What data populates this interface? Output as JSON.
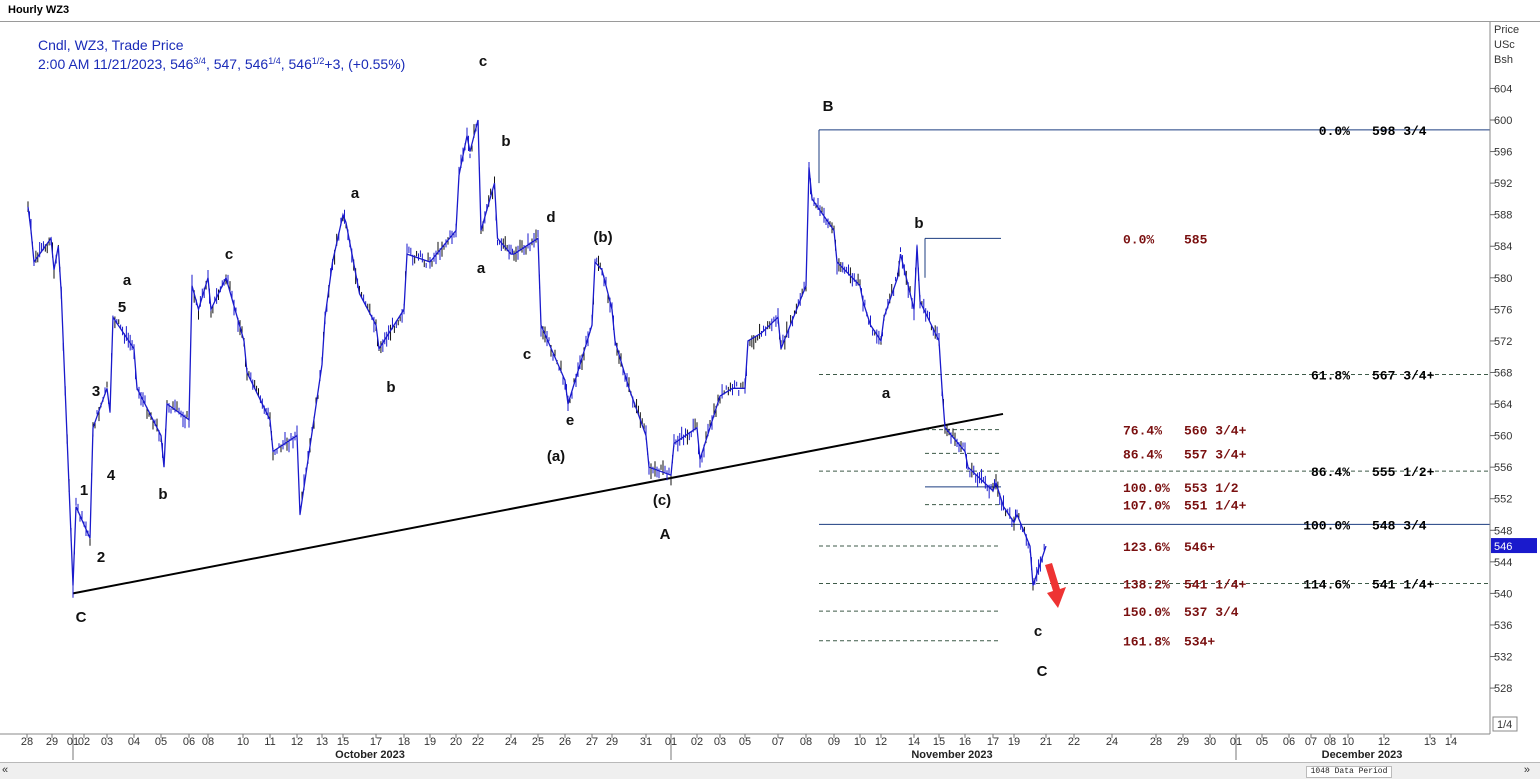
{
  "window": {
    "title": "Hourly WZ3"
  },
  "header": {
    "line1": "Cndl, WZ3, Trade Price",
    "line2_prefix": "2:00 AM 11/21/2023, 546",
    "open_frac": "3/4",
    "high": ", 547, 546",
    "low_frac": "1/4",
    "close": ", 546",
    "close_frac": "1/2",
    "change": "+3, (+0.55%)"
  },
  "colors": {
    "price_series": "#1a1acc",
    "fib_left": "#7a1010",
    "fib_right": "#000000",
    "header_text": "#1a2bb8",
    "current_price_box": "#1a1acc",
    "arrow": "#ee3333"
  },
  "chart_data": {
    "type": "line",
    "chart_style": "hourly candlestick (OHLC)",
    "instrument": "WZ3",
    "ylabel_lines": [
      "Price",
      "USc",
      "Bsh"
    ],
    "ylim": [
      524,
      608
    ],
    "yticks": [
      528,
      532,
      536,
      540,
      544,
      548,
      552,
      556,
      560,
      564,
      568,
      572,
      576,
      580,
      584,
      588,
      592,
      596,
      600,
      604
    ],
    "current_price_tag": "546",
    "scale_box": "1/4",
    "x_dates": [
      "28",
      "29",
      "01",
      "02",
      "03",
      "04",
      "05",
      "06",
      "08",
      "10",
      "11",
      "12",
      "13",
      "15",
      "17",
      "18",
      "19",
      "20",
      "22",
      "24",
      "25",
      "26",
      "27",
      "29",
      "31",
      "01",
      "02",
      "03",
      "05",
      "07",
      "08",
      "09",
      "10",
      "12",
      "14",
      "15",
      "16",
      "17",
      "19",
      "21",
      "22",
      "24",
      "28",
      "29",
      "30",
      "01",
      "05",
      "06",
      "07",
      "08",
      "10",
      "12",
      "13",
      "14"
    ],
    "month_labels": [
      "October 2023",
      "November 2023",
      "December 2023"
    ],
    "series": [
      {
        "values": [
          [
            "09-28",
            589
          ],
          [
            "09-28",
            586
          ],
          [
            "09-28",
            582
          ],
          [
            "09-29",
            585
          ],
          [
            "09-29",
            581
          ],
          [
            "09-30",
            584
          ],
          [
            "09-30",
            578
          ],
          [
            "10-01",
            541
          ],
          [
            "10-01",
            551
          ],
          [
            "10-02",
            547
          ],
          [
            "10-02",
            561
          ],
          [
            "10-03",
            566
          ],
          [
            "10-03",
            563
          ],
          [
            "10-03",
            575
          ],
          [
            "10-04",
            571
          ],
          [
            "10-04",
            566
          ],
          [
            "10-05",
            560
          ],
          [
            "10-05",
            556
          ],
          [
            "10-05",
            564
          ],
          [
            "10-06",
            562
          ],
          [
            "10-06",
            579
          ],
          [
            "10-07",
            576
          ],
          [
            "10-08",
            580
          ],
          [
            "10-08",
            576
          ],
          [
            "10-09",
            580
          ],
          [
            "10-10",
            572
          ],
          [
            "10-10",
            568
          ],
          [
            "10-11",
            562
          ],
          [
            "10-11",
            558
          ],
          [
            "10-12",
            560
          ],
          [
            "10-12",
            550
          ],
          [
            "10-13",
            569
          ],
          [
            "10-13",
            575
          ],
          [
            "10-14",
            582
          ],
          [
            "10-15",
            588
          ],
          [
            "10-15",
            587
          ],
          [
            "10-16",
            578
          ],
          [
            "10-17",
            574
          ],
          [
            "10-17",
            571
          ],
          [
            "10-18",
            576
          ],
          [
            "10-18",
            583
          ],
          [
            "10-19",
            582
          ],
          [
            "10-20",
            586
          ],
          [
            "10-20",
            593
          ],
          [
            "10-21",
            598
          ],
          [
            "10-21",
            596
          ],
          [
            "10-22",
            600
          ],
          [
            "10-22",
            586
          ],
          [
            "10-23",
            592
          ],
          [
            "10-23",
            585
          ],
          [
            "10-24",
            583
          ],
          [
            "10-24",
            583
          ],
          [
            "10-25",
            585
          ],
          [
            "10-25",
            574
          ],
          [
            "10-26",
            567
          ],
          [
            "10-26",
            564
          ],
          [
            "10-27",
            574
          ],
          [
            "10-27",
            582
          ],
          [
            "10-28",
            581
          ],
          [
            "10-29",
            576
          ],
          [
            "10-29",
            572
          ],
          [
            "10-30",
            566
          ],
          [
            "10-31",
            560
          ],
          [
            "10-31",
            556
          ],
          [
            "11-01",
            555
          ],
          [
            "11-01",
            559
          ],
          [
            "11-02",
            561
          ],
          [
            "11-02",
            557
          ],
          [
            "11-03",
            565
          ],
          [
            "11-04",
            566
          ],
          [
            "11-05",
            566
          ],
          [
            "11-05",
            572
          ],
          [
            "11-06",
            573
          ],
          [
            "11-07",
            575
          ],
          [
            "11-07",
            571
          ],
          [
            "11-08",
            579
          ],
          [
            "11-08",
            594
          ],
          [
            "11-08",
            590
          ],
          [
            "11-09",
            586
          ],
          [
            "11-09",
            582
          ],
          [
            "11-10",
            579
          ],
          [
            "11-10",
            577
          ],
          [
            "11-11",
            574
          ],
          [
            "11-12",
            572
          ],
          [
            "11-12",
            575
          ],
          [
            "11-13",
            580
          ],
          [
            "11-13",
            583
          ],
          [
            "11-14",
            576
          ],
          [
            "11-14",
            584
          ],
          [
            "11-14",
            577
          ],
          [
            "11-15",
            572
          ],
          [
            "11-15",
            566
          ],
          [
            "11-15",
            561
          ],
          [
            "11-16",
            558
          ],
          [
            "11-16",
            556
          ],
          [
            "11-17",
            553
          ],
          [
            "11-17",
            554
          ],
          [
            "11-18",
            551
          ],
          [
            "11-19",
            549
          ],
          [
            "11-19",
            550
          ],
          [
            "11-20",
            546
          ],
          [
            "11-20",
            541
          ],
          [
            "11-21",
            546
          ]
        ]
      }
    ],
    "trendline": {
      "from": [
        "10-01",
        540
      ],
      "to": [
        "11-17",
        563
      ]
    },
    "fib_right": [
      {
        "pct": "0.0%",
        "price": "598 3/4",
        "value": 598.75
      },
      {
        "pct": "61.8%",
        "price": "567 3/4+",
        "value": 567.75
      },
      {
        "pct": "86.4%",
        "price": "555 1/2+",
        "value": 555.5
      },
      {
        "pct": "100.0%",
        "price": "548 3/4",
        "value": 548.75
      },
      {
        "pct": "114.6%",
        "price": "541 1/4+",
        "value": 541.25
      }
    ],
    "fib_left": [
      {
        "pct": "0.0%",
        "price": "585",
        "value": 585
      },
      {
        "pct": "76.4%",
        "price": "560 3/4+",
        "value": 560.75
      },
      {
        "pct": "86.4%",
        "price": "557 3/4+",
        "value": 557.75
      },
      {
        "pct": "100.0%",
        "price": "553 1/2",
        "value": 553.5
      },
      {
        "pct": "107.0%",
        "price": "551 1/4+",
        "value": 551.25
      },
      {
        "pct": "123.6%",
        "price": "546+",
        "value": 546
      },
      {
        "pct": "138.2%",
        "price": "541 1/4+",
        "value": 541.25
      },
      {
        "pct": "150.0%",
        "price": "537 3/4",
        "value": 537.75
      },
      {
        "pct": "161.8%",
        "price": "534+",
        "value": 534
      }
    ],
    "wave_labels": [
      "C",
      "1",
      "2",
      "3",
      "4",
      "5",
      "a",
      "b",
      "c",
      "a",
      "b",
      "c",
      "a",
      "b",
      "c",
      "d",
      "e",
      "(a)",
      "(b)",
      "(c)",
      "A",
      "B",
      "a",
      "b",
      "c",
      "C"
    ]
  },
  "status_bar": {
    "scroll_left": "«",
    "scroll_right": "»",
    "data_period": "1048 Data Period"
  }
}
